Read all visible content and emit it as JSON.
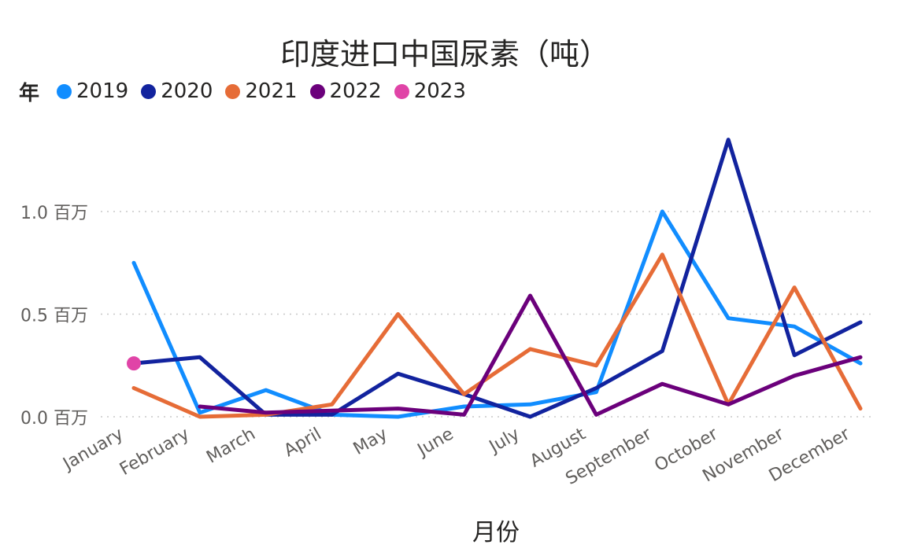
{
  "chart_data": {
    "type": "line",
    "title": "印度进口中国尿素（吨）",
    "xlabel": "月份",
    "ylabel": "",
    "legend_title": "年",
    "legend_position": "top-left",
    "grid": true,
    "ylim": [
      0,
      1.45
    ],
    "y_ticks": [
      {
        "value": 0.0,
        "label": "0.0 百万"
      },
      {
        "value": 0.5,
        "label": "0.5 百万"
      },
      {
        "value": 1.0,
        "label": "1.0 百万"
      }
    ],
    "categories": [
      "January",
      "February",
      "March",
      "April",
      "May",
      "June",
      "July",
      "August",
      "September",
      "October",
      "November",
      "December"
    ],
    "series": [
      {
        "name": "2019",
        "color": "#118DFF",
        "values": [
          0.75,
          0.02,
          0.13,
          0.01,
          0.0,
          0.05,
          0.06,
          0.12,
          1.0,
          0.48,
          0.44,
          0.26
        ]
      },
      {
        "name": "2020",
        "color": "#12239E",
        "values": [
          0.26,
          0.29,
          0.01,
          0.01,
          0.21,
          0.11,
          0.0,
          0.14,
          0.32,
          1.35,
          0.3,
          0.46
        ]
      },
      {
        "name": "2021",
        "color": "#E66C37",
        "values": [
          0.14,
          0.0,
          0.01,
          0.06,
          0.5,
          0.11,
          0.33,
          0.25,
          0.79,
          0.06,
          0.63,
          0.04
        ]
      },
      {
        "name": "2022",
        "color": "#6B007B",
        "values": [
          null,
          0.05,
          0.02,
          0.03,
          0.04,
          0.01,
          0.59,
          0.01,
          0.16,
          0.06,
          0.2,
          0.29
        ]
      },
      {
        "name": "2023",
        "color": "#E044A7",
        "values": [
          0.26,
          null,
          null,
          null,
          null,
          null,
          null,
          null,
          null,
          null,
          null,
          null
        ]
      }
    ]
  }
}
